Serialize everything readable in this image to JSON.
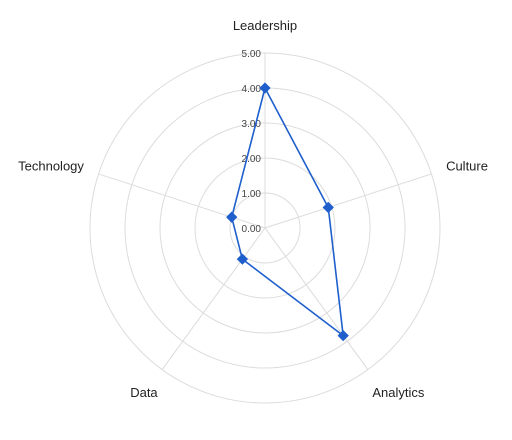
{
  "chart_data": {
    "type": "radar",
    "title": "",
    "categories": [
      "Leadership",
      "Culture",
      "Analytics",
      "Data",
      "Technology"
    ],
    "series": [
      {
        "values": [
          4.0,
          1.9,
          3.8,
          1.1,
          1.0
        ]
      }
    ],
    "rlim": [
      0,
      5
    ],
    "ticks": [
      "0.00",
      "1.00",
      "2.00",
      "3.00",
      "4.00",
      "5.00"
    ],
    "tick_values": [
      0,
      1,
      2,
      3,
      4,
      5
    ],
    "grid": true,
    "legend": "none",
    "colors": {
      "series": "#1f5fcc",
      "grid": "#dcdcdc"
    }
  }
}
